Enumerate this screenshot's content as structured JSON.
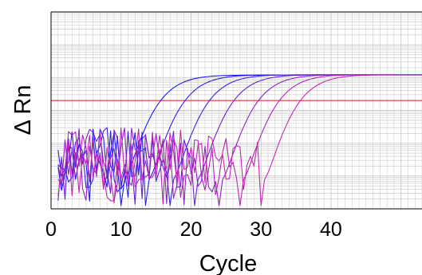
{
  "chart_data": {
    "type": "line",
    "title": "",
    "xlabel": "Cycle",
    "ylabel": "Δ Rn",
    "xlim": [
      0,
      53
    ],
    "ylim": [
      -4,
      2
    ],
    "y_scale": "log",
    "x_ticks": [
      0,
      10,
      20,
      30,
      40
    ],
    "x_tick_labels": [
      "0",
      "10",
      "20",
      "30",
      "40"
    ],
    "grid": true,
    "legend": "none",
    "threshold": {
      "value": 0.2,
      "color": "#e04040"
    },
    "colors": {
      "grid": "#c8c8c8",
      "axis": "#000000"
    },
    "series": [
      {
        "color": "#1a1aff",
        "ct": 14.0,
        "plateau": 1.2
      },
      {
        "color": "#2a1ff0",
        "ct": 17.5,
        "plateau": 1.21
      },
      {
        "color": "#4420e0",
        "ct": 21.0,
        "plateau": 1.22
      },
      {
        "color": "#6a22d2",
        "ct": 24.5,
        "plateau": 1.22
      },
      {
        "color": "#9024c4",
        "ct": 28.0,
        "plateau": 1.22
      },
      {
        "color": "#b026b6",
        "ct": 31.0,
        "plateau": 1.23
      },
      {
        "color": "#c828b0",
        "ct": 34.0,
        "plateau": 1.22
      }
    ]
  }
}
